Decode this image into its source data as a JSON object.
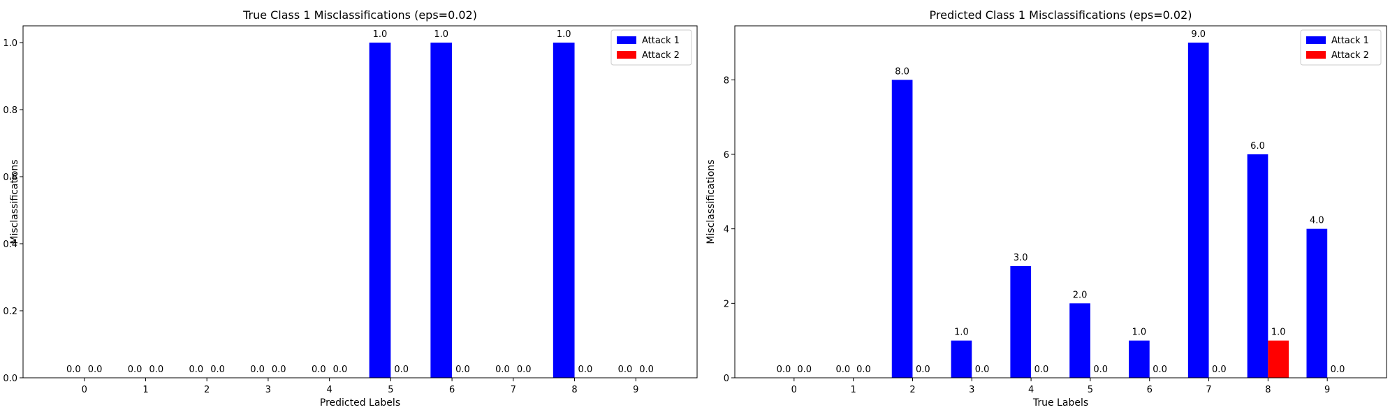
{
  "chart_data": [
    {
      "type": "bar",
      "title": "True Class 1 Misclassifications (eps=0.02)",
      "xlabel": "Predicted Labels",
      "ylabel": "Misclassifications",
      "categories": [
        "0",
        "1",
        "2",
        "3",
        "4",
        "5",
        "6",
        "7",
        "8",
        "9"
      ],
      "series": [
        {
          "name": "Attack 1",
          "color": "#0000ff",
          "values": [
            0,
            0,
            0,
            0,
            0,
            1,
            1,
            0,
            1,
            0
          ]
        },
        {
          "name": "Attack 2",
          "color": "#ff0000",
          "values": [
            0,
            0,
            0,
            0,
            0,
            0,
            0,
            0,
            0,
            0
          ]
        }
      ],
      "data_labels": {
        "Attack 1": [
          "0.0",
          "0.0",
          "0.0",
          "0.0",
          "0.0",
          "1.0",
          "1.0",
          "0.0",
          "1.0",
          "0.0"
        ],
        "Attack 2": [
          "0.0",
          "0.0",
          "0.0",
          "0.0",
          "0.0",
          "0.0",
          "0.0",
          "0.0",
          "0.0",
          "0.0"
        ]
      },
      "ylim": [
        0,
        1.05
      ],
      "yticks": [
        0.0,
        0.2,
        0.4,
        0.6,
        0.8,
        1.0
      ],
      "ytick_labels": [
        "0.0",
        "0.2",
        "0.4",
        "0.6",
        "0.8",
        "1.0"
      ],
      "legend_position": "top-right",
      "grid": false
    },
    {
      "type": "bar",
      "title": "Predicted Class 1 Misclassifications (eps=0.02)",
      "xlabel": "True Labels",
      "ylabel": "Misclassifications",
      "categories": [
        "0",
        "1",
        "2",
        "3",
        "4",
        "5",
        "6",
        "7",
        "8",
        "9"
      ],
      "series": [
        {
          "name": "Attack 1",
          "color": "#0000ff",
          "values": [
            0,
            0,
            8,
            1,
            3,
            2,
            1,
            9,
            6,
            4
          ]
        },
        {
          "name": "Attack 2",
          "color": "#ff0000",
          "values": [
            0,
            0,
            0,
            0,
            0,
            0,
            0,
            0,
            1,
            0
          ]
        }
      ],
      "data_labels": {
        "Attack 1": [
          "0.0",
          "0.0",
          "8.0",
          "1.0",
          "3.0",
          "2.0",
          "1.0",
          "9.0",
          "6.0",
          "4.0"
        ],
        "Attack 2": [
          "0.0",
          "0.0",
          "0.0",
          "0.0",
          "0.0",
          "0.0",
          "0.0",
          "0.0",
          "1.0",
          "0.0"
        ]
      },
      "ylim": [
        0,
        9.45
      ],
      "yticks": [
        0,
        2,
        4,
        6,
        8
      ],
      "ytick_labels": [
        "0",
        "2",
        "4",
        "6",
        "8"
      ],
      "legend_position": "top-right",
      "grid": false
    }
  ]
}
